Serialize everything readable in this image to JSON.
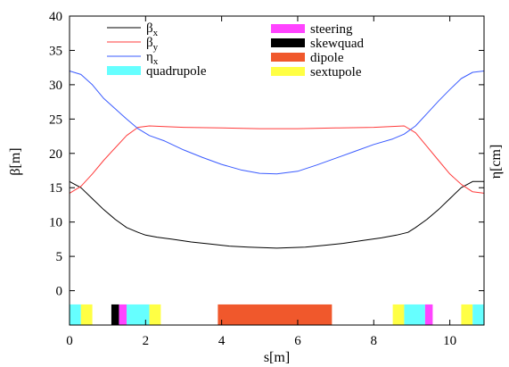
{
  "chart_data": {
    "type": "line",
    "title": "",
    "xlabel": "s[m]",
    "ylabel": "β[m]",
    "y2label": "η[cm]",
    "xlim": [
      0,
      10.9
    ],
    "ylim": [
      -5,
      40
    ],
    "xticks": [
      0,
      2,
      4,
      6,
      8,
      10
    ],
    "yticks": [
      0,
      5,
      10,
      15,
      20,
      25,
      30,
      35,
      40
    ],
    "grid": false,
    "legend_position": "top",
    "series": [
      {
        "name": "βx",
        "color": "#000000",
        "x": [
          0,
          0.3,
          0.6,
          0.9,
          1.2,
          1.5,
          1.8,
          2.0,
          2.3,
          2.7,
          3.2,
          3.7,
          4.2,
          4.7,
          5.2,
          5.45,
          5.7,
          6.2,
          6.7,
          7.2,
          7.7,
          8.2,
          8.6,
          8.9,
          9.1,
          9.4,
          9.7,
          10.0,
          10.3,
          10.6,
          10.9
        ],
        "y": [
          15.9,
          15.0,
          13.4,
          11.8,
          10.4,
          9.2,
          8.5,
          8.1,
          7.8,
          7.5,
          7.1,
          6.8,
          6.5,
          6.35,
          6.25,
          6.2,
          6.25,
          6.35,
          6.6,
          6.9,
          7.3,
          7.7,
          8.1,
          8.5,
          9.2,
          10.4,
          11.8,
          13.4,
          15.0,
          15.9,
          15.9
        ]
      },
      {
        "name": "βy",
        "color": "#ff3b3b",
        "x": [
          0,
          0.3,
          0.6,
          0.9,
          1.2,
          1.5,
          1.8,
          2.1,
          2.5,
          3.0,
          4.0,
          5.0,
          5.45,
          6.0,
          7.0,
          8.0,
          8.8,
          9.1,
          9.4,
          9.7,
          10.0,
          10.3,
          10.6,
          10.9
        ],
        "y": [
          14.2,
          15.2,
          17.0,
          19.0,
          20.8,
          22.6,
          23.8,
          24.0,
          23.9,
          23.8,
          23.7,
          23.6,
          23.6,
          23.6,
          23.7,
          23.8,
          24.0,
          23.0,
          21.0,
          19.0,
          17.0,
          15.5,
          14.4,
          14.2
        ]
      },
      {
        "name": "ηx",
        "color": "#3a5bff",
        "x": [
          0,
          0.3,
          0.6,
          0.9,
          1.2,
          1.5,
          1.8,
          2.1,
          2.5,
          3.0,
          3.5,
          4.0,
          4.5,
          5.0,
          5.45,
          6.0,
          6.5,
          7.0,
          7.5,
          8.0,
          8.5,
          8.8,
          9.1,
          9.4,
          9.7,
          10.0,
          10.3,
          10.6,
          10.9
        ],
        "y": [
          32.0,
          31.5,
          30.0,
          28.0,
          26.5,
          25.0,
          23.6,
          22.6,
          21.8,
          20.5,
          19.4,
          18.4,
          17.6,
          17.1,
          17.0,
          17.4,
          18.3,
          19.3,
          20.3,
          21.3,
          22.1,
          22.8,
          24.0,
          25.8,
          27.6,
          29.3,
          30.9,
          31.8,
          32.0
        ]
      }
    ],
    "elements_band": {
      "y_range": [
        -5,
        -2
      ],
      "items": [
        {
          "type": "quadrupole",
          "x0": 0.0,
          "x1": 0.3
        },
        {
          "type": "sextupole",
          "x0": 0.3,
          "x1": 0.6
        },
        {
          "type": "skewquad",
          "x0": 1.1,
          "x1": 1.3
        },
        {
          "type": "steering",
          "x0": 1.3,
          "x1": 1.5
        },
        {
          "type": "quadrupole",
          "x0": 1.5,
          "x1": 2.1
        },
        {
          "type": "sextupole",
          "x0": 2.1,
          "x1": 2.4
        },
        {
          "type": "dipole",
          "x0": 3.9,
          "x1": 6.9
        },
        {
          "type": "sextupole",
          "x0": 8.5,
          "x1": 8.8
        },
        {
          "type": "quadrupole",
          "x0": 8.8,
          "x1": 9.35
        },
        {
          "type": "steering",
          "x0": 9.35,
          "x1": 9.55
        },
        {
          "type": "sextupole",
          "x0": 10.3,
          "x1": 10.6
        },
        {
          "type": "quadrupole",
          "x0": 10.6,
          "x1": 10.9
        }
      ]
    },
    "legend": {
      "lines": [
        {
          "sym": "β",
          "sub": "x",
          "color": "#000000"
        },
        {
          "sym": "β",
          "sub": "y",
          "color": "#ff3b3b"
        },
        {
          "sym": "η",
          "sub": "x",
          "color": "#3a5bff"
        }
      ],
      "boxes_left": [
        {
          "label": "quadrupole",
          "color": "#66ffff"
        }
      ],
      "boxes_right": [
        {
          "label": "steering",
          "color": "#ff44ff"
        },
        {
          "label": "skewquad",
          "color": "#000000"
        },
        {
          "label": "dipole",
          "color": "#f0582c"
        },
        {
          "label": "sextupole",
          "color": "#ffff44"
        }
      ]
    },
    "element_colors": {
      "quadrupole": "#66ffff",
      "sextupole": "#ffff44",
      "skewquad": "#000000",
      "steering": "#ff44ff",
      "dipole": "#f0582c"
    }
  }
}
